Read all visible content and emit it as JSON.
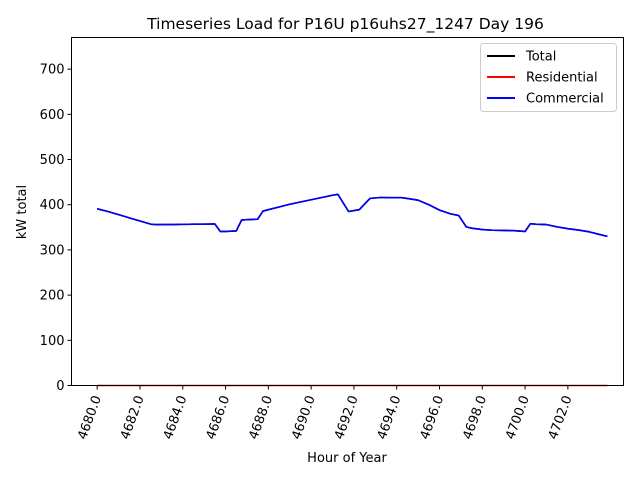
{
  "chart_data": {
    "type": "line",
    "title": "Timeseries Load for P16U p16uhs27_1247  Day 196",
    "xlabel": "Hour of Year",
    "ylabel": "kW total",
    "xlim": [
      4678.8,
      4704.6
    ],
    "ylim": [
      0,
      770
    ],
    "xticks": [
      4680,
      4682,
      4684,
      4686,
      4688,
      4690,
      4692,
      4694,
      4696,
      4698,
      4700,
      4702
    ],
    "xtick_labels": [
      "4680.0",
      "4682.0",
      "4684.0",
      "4686.0",
      "4688.0",
      "4690.0",
      "4692.0",
      "4694.0",
      "4696.0",
      "4698.0",
      "4700.0",
      "4702.0"
    ],
    "yticks": [
      0,
      100,
      200,
      300,
      400,
      500,
      600,
      700
    ],
    "ytick_labels": [
      "0",
      "100",
      "200",
      "300",
      "400",
      "500",
      "600",
      "700"
    ],
    "legend_position": "top-right",
    "x": [
      4680.0,
      4680.5,
      4681.0,
      4681.5,
      4682.0,
      4682.5,
      4682.75,
      4683.0,
      4683.5,
      4684.0,
      4684.5,
      4685.0,
      4685.5,
      4685.75,
      4686.0,
      4686.5,
      4686.75,
      4687.0,
      4687.5,
      4687.75,
      4688.0,
      4688.5,
      4689.0,
      4689.5,
      4690.0,
      4690.5,
      4691.0,
      4691.25,
      4691.75,
      4692.25,
      4692.75,
      4693.25,
      4693.75,
      4694.25,
      4694.75,
      4695.0,
      4695.5,
      4696.0,
      4696.5,
      4696.9,
      4697.25,
      4697.5,
      4698.0,
      4698.5,
      4699.0,
      4699.5,
      4700.0,
      4700.25,
      4700.5,
      4701.0,
      4701.5,
      4702.0,
      4702.5,
      4703.0,
      4703.5,
      4703.85
    ],
    "series": [
      {
        "name": "Total",
        "color": "#000000",
        "values": [
          391,
          385,
          378,
          371,
          364,
          357,
          356,
          356,
          356,
          356.5,
          357,
          357,
          357.5,
          341,
          341,
          342,
          366,
          367,
          368,
          386,
          389,
          395,
          401,
          406,
          411,
          416,
          421,
          423,
          385,
          389,
          414,
          416,
          415.5,
          415.5,
          412,
          410,
          400,
          388,
          380,
          376,
          351,
          348,
          345,
          343.5,
          343,
          342.5,
          341,
          358,
          357,
          356,
          351,
          347,
          344,
          340,
          334,
          330
        ]
      },
      {
        "name": "Residential",
        "color": "#ff0000",
        "values": [
          0,
          0,
          0,
          0,
          0,
          0,
          0,
          0,
          0,
          0,
          0,
          0,
          0,
          0,
          0,
          0,
          0,
          0,
          0,
          0,
          0,
          0,
          0,
          0,
          0,
          0,
          0,
          0,
          0,
          0,
          0,
          0,
          0,
          0,
          0,
          0,
          0,
          0,
          0,
          0,
          0,
          0,
          0,
          0,
          0,
          0,
          0,
          0,
          0,
          0,
          0,
          0,
          0,
          0,
          0,
          0
        ]
      },
      {
        "name": "Commercial",
        "color": "#0000ff",
        "values": [
          391,
          385,
          378,
          371,
          364,
          357,
          356,
          356,
          356,
          356.5,
          357,
          357,
          357.5,
          341,
          341,
          342,
          366,
          367,
          368,
          386,
          389,
          395,
          401,
          406,
          411,
          416,
          421,
          423,
          385,
          389,
          414,
          416,
          415.5,
          415.5,
          412,
          410,
          400,
          388,
          380,
          376,
          351,
          348,
          345,
          343.5,
          343,
          342.5,
          341,
          358,
          357,
          356,
          351,
          347,
          344,
          340,
          334,
          330
        ]
      }
    ]
  }
}
